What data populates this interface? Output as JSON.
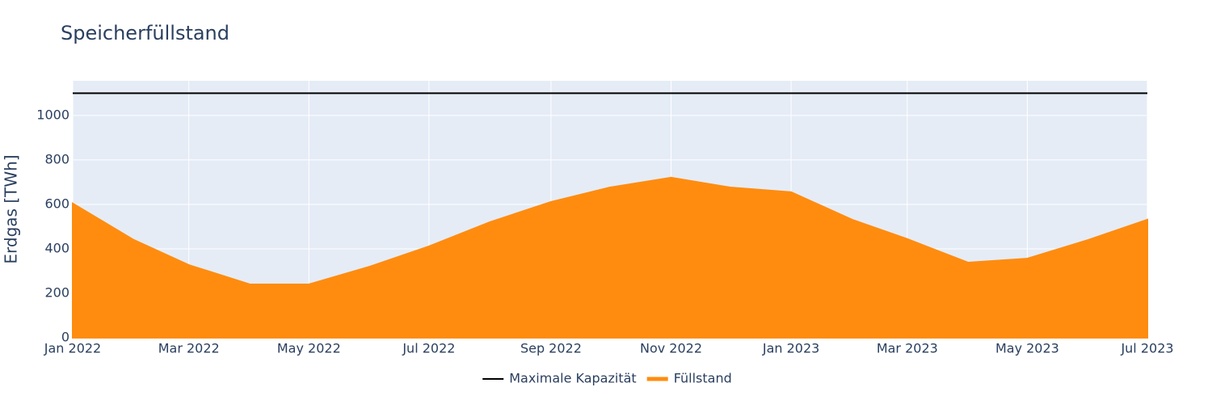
{
  "chart_data": {
    "type": "area",
    "title": "Speicherfüllstand",
    "y_axis_label": "Erdgas [TWh]",
    "x": [
      "2022-01",
      "2022-02",
      "2022-03",
      "2022-04",
      "2022-05",
      "2022-06",
      "2022-07",
      "2022-08",
      "2022-09",
      "2022-10",
      "2022-11",
      "2022-12",
      "2023-01",
      "2023-02",
      "2023-03",
      "2023-04",
      "2023-05",
      "2023-06",
      "2023-07"
    ],
    "series": [
      {
        "name": "Maximale Kapazität",
        "type": "line",
        "color": "#000000",
        "values": [
          1100,
          1100,
          1100,
          1100,
          1100,
          1100,
          1100,
          1100,
          1100,
          1100,
          1100,
          1100,
          1100,
          1100,
          1100,
          1100,
          1100,
          1100,
          1100
        ]
      },
      {
        "name": "Füllstand",
        "type": "area",
        "color": "#ff8c0f",
        "values": [
          604,
          440,
          327,
          240,
          240,
          320,
          411,
          520,
          611,
          676,
          720,
          676,
          655,
          531,
          444,
          338,
          356,
          440,
          531
        ]
      }
    ],
    "xlim": [
      "2022-01",
      "2023-07"
    ],
    "xticks": [
      {
        "value": "2022-01",
        "label": "Jan 2022"
      },
      {
        "value": "2022-03",
        "label": "Mar 2022"
      },
      {
        "value": "2022-05",
        "label": "May 2022"
      },
      {
        "value": "2022-07",
        "label": "Jul 2022"
      },
      {
        "value": "2022-09",
        "label": "Sep 2022"
      },
      {
        "value": "2022-11",
        "label": "Nov 2022"
      },
      {
        "value": "2023-01",
        "label": "Jan 2023"
      },
      {
        "value": "2023-03",
        "label": "Mar 2023"
      },
      {
        "value": "2023-05",
        "label": "May 2023"
      },
      {
        "value": "2023-07",
        "label": "Jul 2023"
      }
    ],
    "ylim": [
      0,
      1156
    ],
    "yticks": [
      0,
      200,
      400,
      600,
      800,
      1000
    ],
    "grid": true,
    "legend": "bottom"
  }
}
